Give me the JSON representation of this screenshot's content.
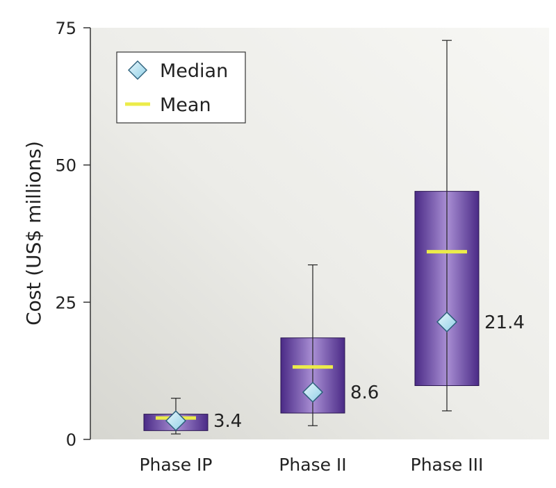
{
  "chart_data": {
    "type": "box",
    "ylabel": "Cost (US$ millions)",
    "ylim": [
      0,
      75
    ],
    "yticks": [
      0,
      25,
      50,
      75
    ],
    "categories": [
      "Phase IP",
      "Phase II",
      "Phase III"
    ],
    "boxes": [
      {
        "category": "Phase IP",
        "min": 1.0,
        "q1": 1.6,
        "median": 3.4,
        "mean": 3.9,
        "q3": 4.6,
        "max": 7.5,
        "label": "3.4"
      },
      {
        "category": "Phase II",
        "min": 2.5,
        "q1": 4.8,
        "median": 8.6,
        "mean": 13.2,
        "q3": 18.5,
        "max": 31.8,
        "label": "8.6"
      },
      {
        "category": "Phase III",
        "min": 5.2,
        "q1": 9.8,
        "median": 21.4,
        "mean": 34.2,
        "q3": 45.2,
        "max": 72.7,
        "label": "21.4"
      }
    ],
    "legend": {
      "position": "top-left",
      "items": [
        {
          "name": "Median",
          "marker": "diamond"
        },
        {
          "name": "Mean",
          "marker": "line"
        }
      ]
    },
    "colors": {
      "box_dark": "#4a2a86",
      "box_light": "#a98fd4",
      "median_fill": "#bfe6f4",
      "median_stroke": "#2c5f7a",
      "mean": "#ecec4a",
      "background_light": "#f6f6f3",
      "background_dark": "#d9d9d3"
    }
  }
}
